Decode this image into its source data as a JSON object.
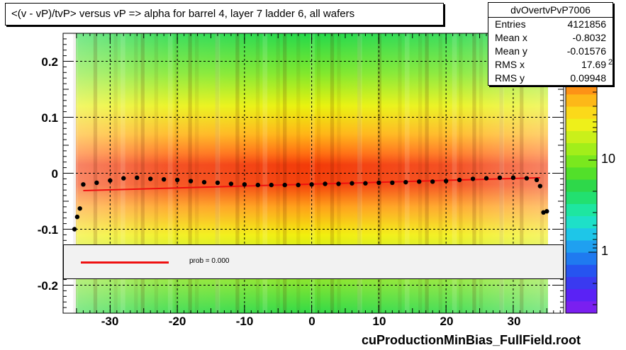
{
  "title": "<(v - vP)/tvP> versus   vP => alpha for barrel 4, layer 7 ladder 6, all wafers",
  "stats": {
    "name": "dvOvertvPvP7006",
    "rows": [
      {
        "label": "Entries",
        "value": "4121856"
      },
      {
        "label": "Mean x",
        "value": "-0.8032"
      },
      {
        "label": "Mean y",
        "value": "-0.01576"
      },
      {
        "label": "RMS x",
        "value": "17.69"
      },
      {
        "label": "RMS y",
        "value": "0.09948"
      }
    ]
  },
  "legend": {
    "text": "prob = 0.000",
    "line_color": "#ee1010"
  },
  "footer": "cuProductionMinBias_FullField.root",
  "colors": {
    "grid": "#000000",
    "fit_line": "#ee1010",
    "profile": "#000000"
  },
  "chart_data": {
    "type": "heatmap",
    "title": "<(v - vP)/tvP> versus   vP => alpha for barrel 4, layer 7 ladder 6, all wafers",
    "xlabel": "",
    "ylabel": "",
    "xlim": [
      -37,
      37.5
    ],
    "ylim": [
      -0.25,
      0.25
    ],
    "x_ticks": [
      -30,
      -20,
      -10,
      0,
      10,
      20,
      30
    ],
    "x_tick_labels": [
      "-30",
      "-20",
      "-10",
      "0",
      "10",
      "20",
      "30"
    ],
    "y_ticks": [
      0.2,
      0.1,
      0,
      -0.1,
      -0.2
    ],
    "y_tick_labels": [
      "0.2",
      "0.1",
      "0",
      "-0.1",
      "-0.2"
    ],
    "z_scale": "log",
    "z_tick_labels": [
      "10",
      "1"
    ],
    "z_exponent_label": "2",
    "z_ticks": [
      {
        "label": "10",
        "value": 10
      },
      {
        "label": "1",
        "value": 1
      }
    ],
    "grid": true,
    "x_data_range": [
      -35.5,
      35
    ],
    "profile": [
      {
        "x": -35.3,
        "y": -0.1
      },
      {
        "x": -34.9,
        "y": -0.078
      },
      {
        "x": -34.5,
        "y": -0.063
      },
      {
        "x": -34,
        "y": -0.02
      },
      {
        "x": -32,
        "y": -0.017
      },
      {
        "x": -30,
        "y": -0.013
      },
      {
        "x": -28,
        "y": -0.009
      },
      {
        "x": -26,
        "y": -0.008
      },
      {
        "x": -24,
        "y": -0.01
      },
      {
        "x": -22,
        "y": -0.011
      },
      {
        "x": -20,
        "y": -0.012
      },
      {
        "x": -18,
        "y": -0.014
      },
      {
        "x": -16,
        "y": -0.016
      },
      {
        "x": -14,
        "y": -0.017
      },
      {
        "x": -12,
        "y": -0.019
      },
      {
        "x": -10,
        "y": -0.02
      },
      {
        "x": -8,
        "y": -0.021
      },
      {
        "x": -6,
        "y": -0.021
      },
      {
        "x": -4,
        "y": -0.021
      },
      {
        "x": -2,
        "y": -0.021
      },
      {
        "x": 0,
        "y": -0.02
      },
      {
        "x": 2,
        "y": -0.019
      },
      {
        "x": 4,
        "y": -0.019
      },
      {
        "x": 6,
        "y": -0.018
      },
      {
        "x": 8,
        "y": -0.018
      },
      {
        "x": 10,
        "y": -0.017
      },
      {
        "x": 12,
        "y": -0.017
      },
      {
        "x": 14,
        "y": -0.016
      },
      {
        "x": 16,
        "y": -0.015
      },
      {
        "x": 18,
        "y": -0.015
      },
      {
        "x": 20,
        "y": -0.014
      },
      {
        "x": 22,
        "y": -0.012
      },
      {
        "x": 24,
        "y": -0.01
      },
      {
        "x": 26,
        "y": -0.009
      },
      {
        "x": 28,
        "y": -0.008
      },
      {
        "x": 30,
        "y": -0.008
      },
      {
        "x": 32,
        "y": -0.009
      },
      {
        "x": 33.5,
        "y": -0.012
      },
      {
        "x": 34,
        "y": -0.023
      },
      {
        "x": 34.5,
        "y": -0.07
      },
      {
        "x": 35,
        "y": -0.068
      }
    ],
    "fit": {
      "x": [
        -34,
        34
      ],
      "y": [
        -0.031,
        -0.008
      ]
    }
  }
}
